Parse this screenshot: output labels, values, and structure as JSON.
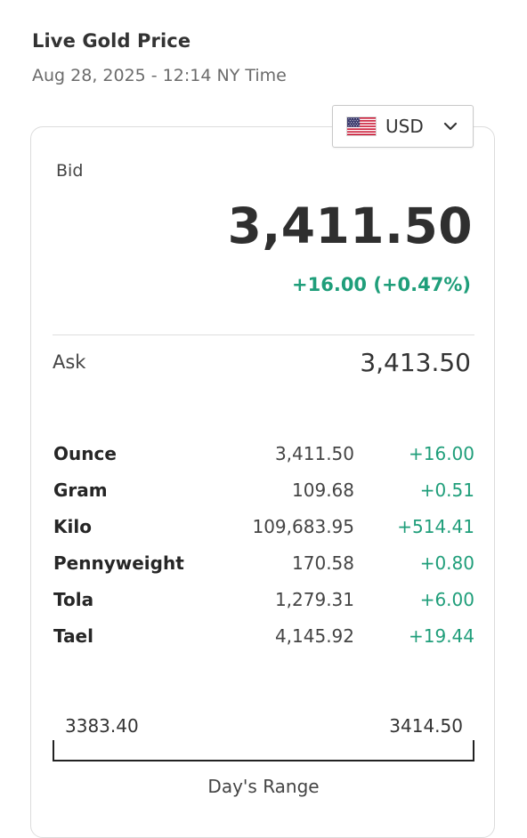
{
  "header": {
    "title": "Live Gold Price",
    "timestamp": "Aug 28, 2025 - 12:14 NY Time"
  },
  "currency": {
    "selected": "USD",
    "flag_icon": "us-flag-icon",
    "chevron_icon": "chevron-down-icon"
  },
  "bid": {
    "label": "Bid",
    "value": "3,411.50",
    "change": "+16.00 (+0.47%)"
  },
  "ask": {
    "label": "Ask",
    "value": "3,413.50"
  },
  "weights": [
    {
      "unit": "Ounce",
      "price": "3,411.50",
      "change": "+16.00"
    },
    {
      "unit": "Gram",
      "price": "109.68",
      "change": "+0.51"
    },
    {
      "unit": "Kilo",
      "price": "109,683.95",
      "change": "+514.41"
    },
    {
      "unit": "Pennyweight",
      "price": "170.58",
      "change": "+0.80"
    },
    {
      "unit": "Tola",
      "price": "1,279.31",
      "change": "+6.00"
    },
    {
      "unit": "Tael",
      "price": "4,145.92",
      "change": "+19.44"
    }
  ],
  "range": {
    "low": "3383.40",
    "high": "3414.50",
    "caption": "Day's Range"
  },
  "colors": {
    "positive": "#1f9e7a",
    "text": "#333333",
    "border": "#dcdcdc"
  }
}
